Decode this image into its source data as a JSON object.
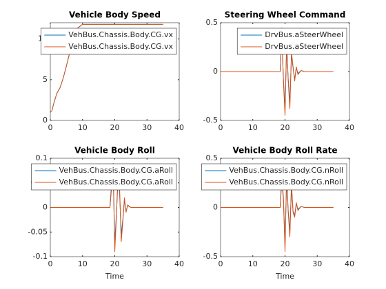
{
  "chart_data": [
    {
      "type": "line",
      "title": "Vehicle Body Speed",
      "x": [
        0,
        0.5,
        1,
        2,
        3,
        4,
        5,
        6,
        7,
        8,
        10,
        15,
        18,
        18.5,
        19,
        19.5,
        20,
        20.5,
        21,
        21.5,
        22,
        22.5,
        23,
        23.5,
        24,
        25,
        26,
        30,
        35
      ],
      "series": [
        {
          "name": "VehBus.Chassis.Body.CG.vx",
          "color": "#0072bd",
          "values": [
            1,
            1.2,
            2,
            3.3,
            4,
            5.2,
            6.7,
            8.3,
            9.8,
            11.2,
            11.8,
            11.8,
            11.8,
            11.8,
            11.8,
            11.8,
            11.8,
            11.8,
            11.8,
            11.8,
            11.8,
            11.8,
            11.8,
            11.8,
            11.8,
            11.8,
            11.8,
            11.8,
            11.8
          ]
        },
        {
          "name": "VehBus.Chassis.Body.CG.vx",
          "color": "#d95319",
          "values": [
            1,
            1.2,
            2,
            3.3,
            4,
            5.2,
            6.7,
            8.3,
            9.8,
            11.2,
            11.8,
            11.8,
            11.8,
            11.8,
            11.8,
            11.8,
            11.8,
            11.8,
            11.8,
            11.8,
            11.8,
            11.8,
            11.8,
            11.8,
            11.8,
            11.8,
            11.8,
            11.8,
            11.8
          ]
        }
      ],
      "xlim": [
        0,
        40
      ],
      "xticks": [
        0,
        10,
        20,
        30,
        40
      ],
      "ylim": [
        0,
        12
      ],
      "yticks": [
        0,
        5,
        10
      ],
      "legend": "northeast"
    },
    {
      "type": "line",
      "title": "Steering Wheel Command",
      "x": [
        0,
        0.5,
        1,
        2,
        3,
        4,
        5,
        6,
        7,
        8,
        10,
        15,
        18,
        18.5,
        19,
        19.5,
        20,
        20.5,
        21,
        21.5,
        22,
        22.5,
        23,
        23.5,
        24,
        25,
        26,
        30,
        35
      ],
      "series": [
        {
          "name": "DrvBus.aSteerWheel",
          "color": "#0072bd",
          "values": [
            0,
            0,
            0,
            0,
            0,
            0,
            0,
            0,
            0,
            0,
            0,
            0,
            0,
            0,
            0.38,
            -0.08,
            -0.38,
            0.25,
            -0.08,
            -0.32,
            0.17,
            0.04,
            -0.08,
            0.04,
            -0.02,
            0.01,
            0,
            0,
            0
          ]
        },
        {
          "name": "DrvBus.aSteerWheel",
          "color": "#d95319",
          "values": [
            0,
            0,
            0,
            0,
            0,
            0,
            0,
            0,
            0,
            0,
            0,
            0,
            0,
            0,
            0.45,
            -0.1,
            -0.45,
            0.3,
            -0.1,
            -0.38,
            0.2,
            0.05,
            -0.1,
            0.05,
            -0.03,
            0.01,
            0,
            0,
            0
          ]
        }
      ],
      "xlim": [
        0,
        40
      ],
      "xticks": [
        0,
        10,
        20,
        30,
        40
      ],
      "ylim": [
        -0.5,
        0.5
      ],
      "yticks": [
        -0.5,
        0,
        0.5
      ],
      "legend": "northeast"
    },
    {
      "type": "line",
      "title": "Vehicle Body Roll",
      "xlabel": "Time",
      "x": [
        0,
        0.5,
        1,
        2,
        3,
        4,
        5,
        6,
        7,
        8,
        10,
        15,
        18,
        18.5,
        19,
        19.5,
        20,
        20.5,
        21,
        21.5,
        22,
        22.5,
        23,
        23.5,
        24,
        25,
        26,
        30,
        35
      ],
      "series": [
        {
          "name": "VehBus.Chassis.Body.CG.aRoll",
          "color": "#0072bd",
          "values": [
            0,
            0,
            0,
            0,
            0,
            0,
            0,
            0,
            0,
            0,
            0,
            0,
            0,
            0,
            0.04,
            0.07,
            -0.07,
            -0.015,
            0.055,
            0.03,
            -0.055,
            -0.025,
            0.015,
            -0.008,
            0.004,
            0,
            0,
            0,
            0
          ]
        },
        {
          "name": "VehBus.Chassis.Body.CG.aRoll",
          "color": "#d95319",
          "values": [
            0,
            0,
            0,
            0,
            0,
            0,
            0,
            0,
            0,
            0,
            0,
            0,
            0,
            0,
            0.05,
            0.09,
            -0.09,
            -0.02,
            0.07,
            0.04,
            -0.07,
            -0.03,
            0.02,
            -0.01,
            0.005,
            0,
            0,
            0,
            0
          ]
        }
      ],
      "xlim": [
        0,
        40
      ],
      "xticks": [
        0,
        10,
        20,
        30,
        40
      ],
      "ylim": [
        -0.1,
        0.1
      ],
      "yticks": [
        -0.1,
        -0.05,
        0,
        0.05,
        0.1
      ],
      "legend": "northeast"
    },
    {
      "type": "line",
      "title": "Vehicle Body Roll Rate",
      "xlabel": "Time",
      "x": [
        0,
        0.5,
        1,
        2,
        3,
        4,
        5,
        6,
        7,
        8,
        10,
        15,
        18,
        18.5,
        19,
        19.5,
        20,
        20.5,
        21,
        21.5,
        22,
        22.5,
        23,
        23.5,
        24,
        25,
        26,
        30,
        35
      ],
      "series": [
        {
          "name": "VehBus.Chassis.Body.CG.nRoll",
          "color": "#0072bd",
          "values": [
            0,
            0,
            0,
            0,
            0,
            0,
            0,
            0,
            0,
            0,
            0,
            0,
            0,
            0,
            0.28,
            0.08,
            -0.36,
            0.28,
            -0.04,
            -0.24,
            0.2,
            -0.04,
            -0.08,
            0.04,
            -0.02,
            0.01,
            0,
            0,
            0
          ]
        },
        {
          "name": "VehBus.Chassis.Body.CG.nRoll",
          "color": "#d95319",
          "values": [
            0,
            0,
            0,
            0,
            0,
            0,
            0,
            0,
            0,
            0,
            0,
            0,
            0,
            0,
            0.35,
            0.1,
            -0.45,
            0.35,
            -0.05,
            -0.3,
            0.25,
            -0.05,
            -0.1,
            0.05,
            -0.03,
            0.01,
            0,
            0,
            0
          ]
        }
      ],
      "xlim": [
        0,
        40
      ],
      "xticks": [
        0,
        10,
        20,
        30,
        40
      ],
      "ylim": [
        -0.5,
        0.5
      ],
      "yticks": [
        -0.5,
        0,
        0.5
      ],
      "legend": "northeast"
    }
  ]
}
